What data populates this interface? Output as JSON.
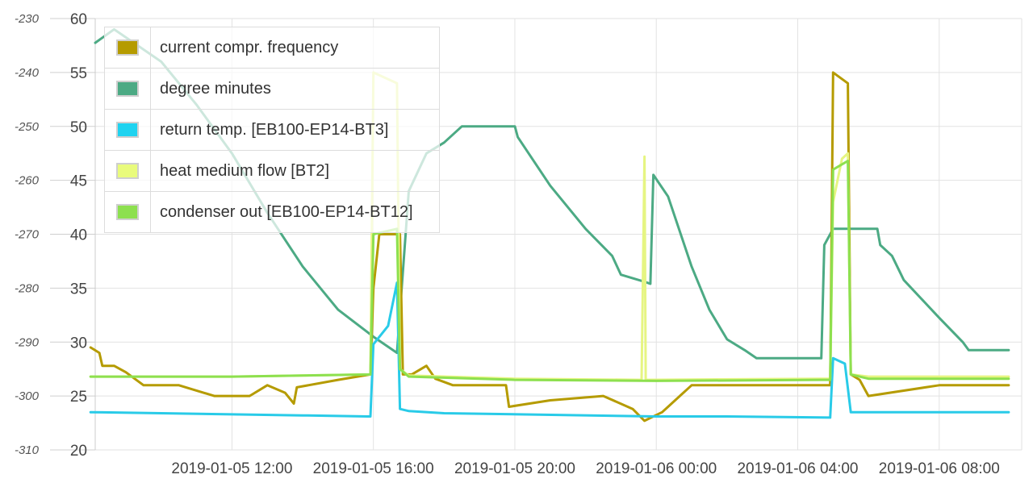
{
  "chart_data": {
    "type": "line",
    "title": "",
    "x_start": "2019-01-05 08:08",
    "x_end": "2019-01-06 10:20",
    "x_tick_labels": [
      "2019-01-05 12:00",
      "2019-01-05 16:00",
      "2019-01-05 20:00",
      "2019-01-06 00:00",
      "2019-01-06 04:00",
      "2019-01-06 08:00"
    ],
    "y_left": {
      "ylim": [
        -310,
        -230
      ],
      "ticks": [
        "-230",
        "-240",
        "-250",
        "-260",
        "-270",
        "-280",
        "-290",
        "-300",
        "-310"
      ]
    },
    "y_right": {
      "ylim": [
        20,
        60
      ],
      "ticks": [
        "60",
        "55",
        "50",
        "45",
        "40",
        "35",
        "30",
        "25",
        "20"
      ]
    },
    "grid": true,
    "legend_placement": "top-left",
    "series": [
      {
        "name": "degree minutes",
        "color": "#4caa84",
        "axis": "left",
        "points": [
          [
            "2019-01-05 08:08",
            -234.5
          ],
          [
            "2019-01-05 08:40",
            -232.0
          ],
          [
            "2019-01-05 10:00",
            -238.0
          ],
          [
            "2019-01-05 11:00",
            -246.0
          ],
          [
            "2019-01-05 12:00",
            -255.0
          ],
          [
            "2019-01-05 13:00",
            -266.0
          ],
          [
            "2019-01-05 14:00",
            -276.0
          ],
          [
            "2019-01-05 15:00",
            -284.0
          ],
          [
            "2019-01-05 16:00",
            -289.0
          ],
          [
            "2019-01-05 16:40",
            -292.0
          ],
          [
            "2019-01-05 17:00",
            -262.0
          ],
          [
            "2019-01-05 17:30",
            -255.0
          ],
          [
            "2019-01-05 18:00",
            -253.0
          ],
          [
            "2019-01-05 18:30",
            -250.0
          ],
          [
            "2019-01-05 20:00",
            -250.0
          ],
          [
            "2019-01-05 20:05",
            -252.0
          ],
          [
            "2019-01-05 21:00",
            -261.0
          ],
          [
            "2019-01-05 22:00",
            -269.0
          ],
          [
            "2019-01-05 22:45",
            -274.0
          ],
          [
            "2019-01-05 23:00",
            -277.5
          ],
          [
            "2019-01-05 23:40",
            -278.8
          ],
          [
            "2019-01-05 23:50",
            -279.2
          ],
          [
            "2019-01-05 23:55",
            -259.0
          ],
          [
            "2019-01-06 00:20",
            -263.0
          ],
          [
            "2019-01-06 01:00",
            -276.0
          ],
          [
            "2019-01-06 01:30",
            -284.0
          ],
          [
            "2019-01-06 02:00",
            -289.5
          ],
          [
            "2019-01-06 02:30",
            -291.5
          ],
          [
            "2019-01-06 02:50",
            -293.0
          ],
          [
            "2019-01-06 04:40",
            -293.0
          ],
          [
            "2019-01-06 04:45",
            -272.0
          ],
          [
            "2019-01-06 05:00",
            -269.0
          ],
          [
            "2019-01-06 06:15",
            -269.0
          ],
          [
            "2019-01-06 06:20",
            -272.0
          ],
          [
            "2019-01-06 06:40",
            -274.0
          ],
          [
            "2019-01-06 07:00",
            -278.5
          ],
          [
            "2019-01-06 08:00",
            -285.5
          ],
          [
            "2019-01-06 08:40",
            -290.0
          ],
          [
            "2019-01-06 08:50",
            -291.5
          ],
          [
            "2019-01-06 09:58",
            -291.5
          ]
        ]
      },
      {
        "name": "current compr. frequency",
        "color": "#b59b00",
        "axis": "right",
        "points": [
          [
            "2019-01-05 08:00",
            29.5
          ],
          [
            "2019-01-05 08:15",
            29.0
          ],
          [
            "2019-01-05 08:20",
            27.8
          ],
          [
            "2019-01-05 08:40",
            27.8
          ],
          [
            "2019-01-05 09:00",
            27.2
          ],
          [
            "2019-01-05 09:30",
            26.0
          ],
          [
            "2019-01-05 10:30",
            26.0
          ],
          [
            "2019-01-05 11:30",
            25.0
          ],
          [
            "2019-01-05 12:30",
            25.0
          ],
          [
            "2019-01-05 13:00",
            26.0
          ],
          [
            "2019-01-05 13:30",
            25.3
          ],
          [
            "2019-01-05 13:45",
            24.3
          ],
          [
            "2019-01-05 13:50",
            25.8
          ],
          [
            "2019-01-05 15:00",
            26.5
          ],
          [
            "2019-01-05 15:55",
            27.0
          ],
          [
            "2019-01-05 16:00",
            35.0
          ],
          [
            "2019-01-05 16:10",
            40.0
          ],
          [
            "2019-01-05 16:45",
            40.0
          ],
          [
            "2019-01-05 16:50",
            27.0
          ],
          [
            "2019-01-05 17:05",
            27.0
          ],
          [
            "2019-01-05 17:30",
            27.8
          ],
          [
            "2019-01-05 17:45",
            26.6
          ],
          [
            "2019-01-05 18:15",
            26.0
          ],
          [
            "2019-01-05 19:45",
            26.0
          ],
          [
            "2019-01-05 19:50",
            24.0
          ],
          [
            "2019-01-05 21:00",
            24.6
          ],
          [
            "2019-01-05 22:30",
            25.0
          ],
          [
            "2019-01-05 23:20",
            23.8
          ],
          [
            "2019-01-05 23:40",
            22.7
          ],
          [
            "2019-01-06 00:10",
            23.5
          ],
          [
            "2019-01-06 00:40",
            25.0
          ],
          [
            "2019-01-06 01:00",
            26.0
          ],
          [
            "2019-01-06 04:55",
            26.0
          ],
          [
            "2019-01-06 05:00",
            55.0
          ],
          [
            "2019-01-06 05:25",
            54.0
          ],
          [
            "2019-01-06 05:30",
            27.0
          ],
          [
            "2019-01-06 05:45",
            26.5
          ],
          [
            "2019-01-06 06:00",
            25.0
          ],
          [
            "2019-01-06 08:00",
            26.0
          ],
          [
            "2019-01-06 09:58",
            26.0
          ]
        ]
      },
      {
        "name": "return temp. [EB100-EP14-BT3]",
        "color": "#29cbe8",
        "axis": "right",
        "points": [
          [
            "2019-01-05 08:00",
            23.5
          ],
          [
            "2019-01-05 10:00",
            23.4
          ],
          [
            "2019-01-05 12:00",
            23.3
          ],
          [
            "2019-01-05 14:00",
            23.2
          ],
          [
            "2019-01-05 15:50",
            23.1
          ],
          [
            "2019-01-05 15:55",
            23.1
          ],
          [
            "2019-01-05 16:00",
            29.8
          ],
          [
            "2019-01-05 16:25",
            31.5
          ],
          [
            "2019-01-05 16:40",
            35.5
          ],
          [
            "2019-01-05 16:45",
            23.8
          ],
          [
            "2019-01-05 17:00",
            23.6
          ],
          [
            "2019-01-05 18:00",
            23.4
          ],
          [
            "2019-01-06 00:00",
            23.1
          ],
          [
            "2019-01-06 02:00",
            23.1
          ],
          [
            "2019-01-06 04:55",
            23.0
          ],
          [
            "2019-01-06 05:00",
            28.5
          ],
          [
            "2019-01-06 05:20",
            28.0
          ],
          [
            "2019-01-06 05:30",
            23.5
          ],
          [
            "2019-01-06 09:58",
            23.5
          ]
        ]
      },
      {
        "name": "heat medium flow [BT2]",
        "color": "#e6f582",
        "axis": "right",
        "points": [
          [
            "2019-01-05 08:00",
            26.8
          ],
          [
            "2019-01-05 12:00",
            26.8
          ],
          [
            "2019-01-05 15:55",
            27.0
          ],
          [
            "2019-01-05 16:00",
            55.0
          ],
          [
            "2019-01-05 16:40",
            54.0
          ],
          [
            "2019-01-05 16:45",
            27.5
          ],
          [
            "2019-01-05 17:00",
            26.9
          ],
          [
            "2019-01-05 20:00",
            26.6
          ],
          [
            "2019-01-05 23:35",
            26.5
          ],
          [
            "2019-01-05 23:40",
            47.2
          ],
          [
            "2019-01-05 23:42",
            26.5
          ],
          [
            "2019-01-06 04:55",
            26.6
          ],
          [
            "2019-01-06 05:00",
            43.0
          ],
          [
            "2019-01-06 05:15",
            47.0
          ],
          [
            "2019-01-06 05:25",
            47.5
          ],
          [
            "2019-01-06 05:30",
            27.0
          ],
          [
            "2019-01-06 06:00",
            26.8
          ],
          [
            "2019-01-06 09:58",
            26.8
          ]
        ]
      },
      {
        "name": "condenser out [EB100-EP14-BT12]",
        "color": "#8de04f",
        "axis": "right",
        "points": [
          [
            "2019-01-05 08:00",
            26.8
          ],
          [
            "2019-01-05 12:00",
            26.8
          ],
          [
            "2019-01-05 15:55",
            27.0
          ],
          [
            "2019-01-05 16:00",
            40.0
          ],
          [
            "2019-01-05 16:40",
            40.5
          ],
          [
            "2019-01-05 16:45",
            27.5
          ],
          [
            "2019-01-05 17:00",
            26.8
          ],
          [
            "2019-01-05 20:00",
            26.5
          ],
          [
            "2019-01-06 00:00",
            26.4
          ],
          [
            "2019-01-06 04:55",
            26.5
          ],
          [
            "2019-01-06 05:00",
            46.0
          ],
          [
            "2019-01-06 05:25",
            46.8
          ],
          [
            "2019-01-06 05:30",
            27.0
          ],
          [
            "2019-01-06 06:00",
            26.6
          ],
          [
            "2019-01-06 09:58",
            26.6
          ]
        ]
      }
    ]
  },
  "legend": {
    "items": [
      {
        "label": "current compr. frequency",
        "color": "#b59b00"
      },
      {
        "label": "degree minutes",
        "color": "#4caa84"
      },
      {
        "label": "return temp. [EB100-EP14-BT3]",
        "color": "#1fd3f0"
      },
      {
        "label": "heat medium flow [BT2]",
        "color": "#e9fb7c"
      },
      {
        "label": "condenser out [EB100-EP14-BT12]",
        "color": "#8de04f"
      }
    ]
  }
}
